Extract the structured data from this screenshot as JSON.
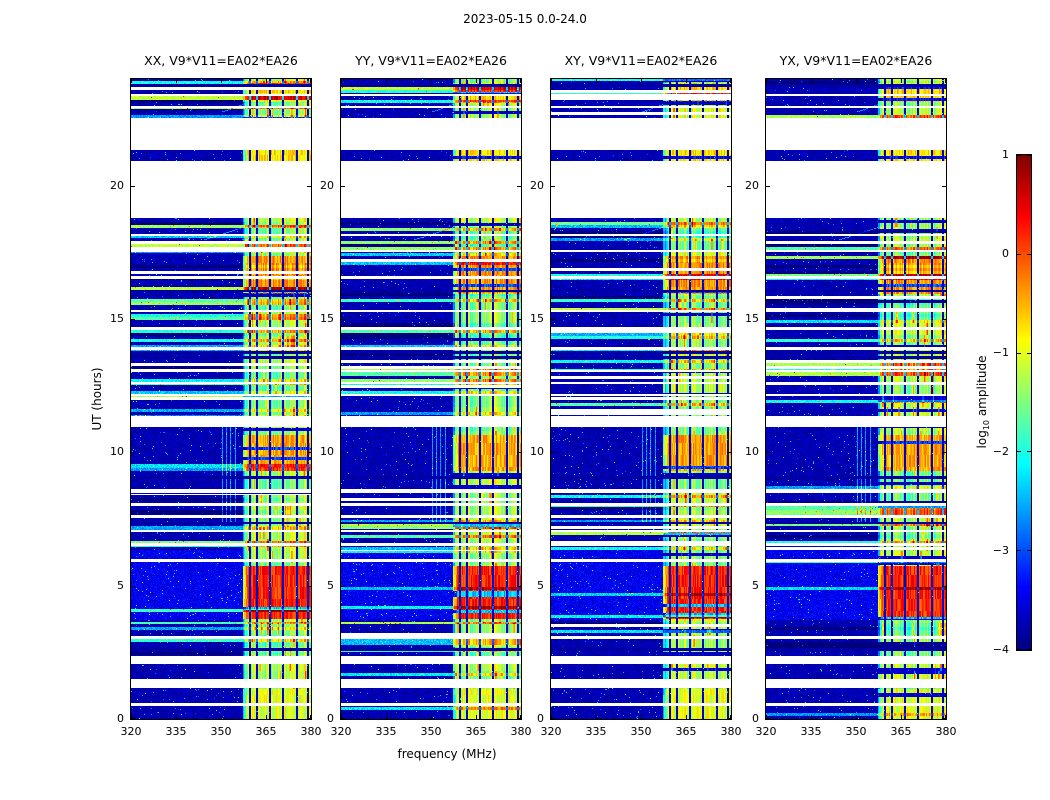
{
  "figure": {
    "title": "2023-05-15 0.0-24.0",
    "xlabel": "frequency (MHz)",
    "ylabel": "UT (hours)"
  },
  "colorbar": {
    "label_prefix": "log",
    "label_sub": "10",
    "label_suffix": " amplitude",
    "ticks": [
      1,
      0,
      -1,
      -2,
      -3,
      -4
    ],
    "range": [
      -4,
      1
    ]
  },
  "chart_data": {
    "type": "heatmap",
    "colormap": "jet",
    "panels": [
      {
        "title": "XX, V9*V11=EA02*EA26"
      },
      {
        "title": "YY, V9*V11=EA02*EA26"
      },
      {
        "title": "XY, V9*V11=EA02*EA26"
      },
      {
        "title": "YX, V9*V11=EA02*EA26"
      }
    ],
    "x_range": [
      320,
      380
    ],
    "x_ticks": [
      320,
      335,
      350,
      365,
      380
    ],
    "y_range": [
      0,
      24
    ],
    "y_ticks": [
      0,
      5,
      10,
      15,
      20
    ],
    "value_range": [
      -4,
      1
    ],
    "features": {
      "bg": {
        "value": -3.75,
        "noise": 0.25
      },
      "speckle_prob": 0.015,
      "band": {
        "freq_start": 357.5,
        "base": -1.35,
        "grid_freqs": [
          359.6,
          362.0,
          366.3,
          370.7,
          375.2,
          379.0
        ]
      },
      "hot_blocks": [
        {
          "hours": [
            0.0,
            1.12
          ],
          "value": -1.0
        },
        {
          "hours": [
            3.75,
            5.75
          ],
          "value": 0.2
        },
        {
          "hours": [
            9.3,
            10.65
          ],
          "value": -0.45
        },
        {
          "hours": [
            15.95,
            17.35
          ],
          "value": -0.35
        },
        {
          "hours": [
            20.92,
            21.32
          ],
          "value": -0.75
        },
        {
          "hours": [
            23.15,
            23.85
          ],
          "value": -0.7
        }
      ],
      "white_gaps": [
        [
          1.15,
          1.5
        ],
        [
          2.05,
          2.35
        ],
        [
          8.48,
          8.62
        ],
        [
          10.95,
          11.35
        ],
        [
          18.78,
          20.92
        ],
        [
          21.35,
          22.55
        ]
      ],
      "white_lines": [
        0.55,
        3.05,
        5.95,
        6.55,
        7.05,
        7.6,
        8.05,
        12.15,
        12.6,
        13.05,
        13.9,
        14.65,
        15.3,
        16.55,
        17.55,
        18.15,
        22.95,
        23.4
      ],
      "dark_lines": [
        2.6,
        7.35,
        9.05,
        13.55,
        13.75,
        16.05,
        23.75
      ],
      "stripe_regions": [
        [
          2.4,
          3.65
        ],
        [
          6.3,
          8.45
        ],
        [
          11.4,
          18.7
        ],
        [
          22.55,
          24.0
        ]
      ],
      "light_patch": {
        "hours": [
          3.7,
          6.35
        ],
        "boost": 0.3
      },
      "vstreaks": {
        "hours": [
          7.4,
          11.3
        ],
        "freqs": [
          350.4,
          351.9,
          353.3,
          354.8
        ]
      },
      "diag_streaks": [
        {
          "hours": [
            22.75,
            23.45
          ],
          "freq_at_start": 350,
          "freq_at_end": 368
        },
        {
          "hours": [
            17.95,
            18.6
          ],
          "freq_at_start": 344,
          "freq_at_end": 362
        }
      ],
      "seeds": [
        7,
        131,
        263,
        389
      ]
    }
  }
}
